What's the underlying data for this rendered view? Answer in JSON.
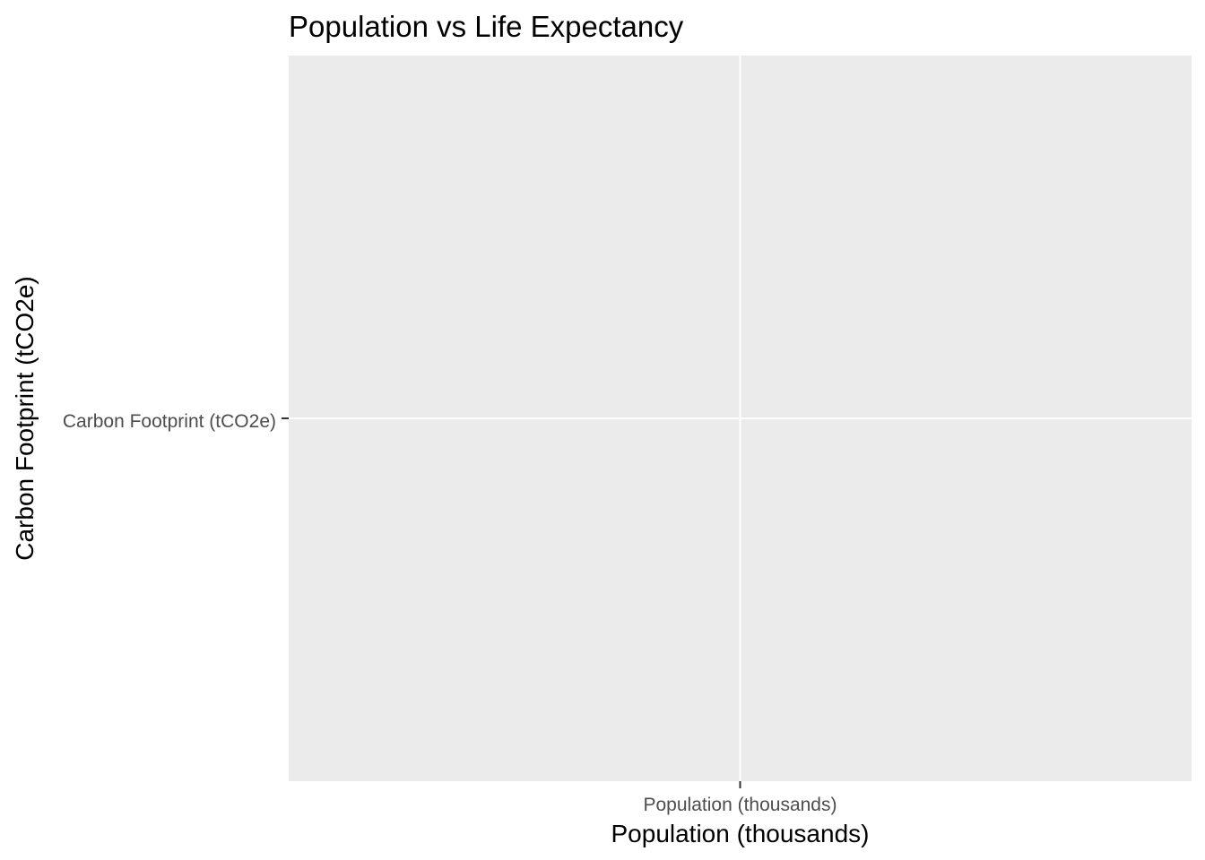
{
  "chart_data": {
    "type": "scatter",
    "title": "Population vs Life Expectancy",
    "xlabel": "Population (thousands)",
    "ylabel": "Carbon Footprint (tCO2e)",
    "x_ticks": [
      "Population (thousands)"
    ],
    "y_ticks": [
      "Carbon Footprint (tCO2e)"
    ],
    "series": [],
    "grid": true,
    "legend": "none",
    "colors": {
      "panel_background": "#ebebeb",
      "grid": "#ffffff",
      "tick_mark": "#333333",
      "tick_text": "#4d4d4d",
      "text": "#000000"
    }
  }
}
